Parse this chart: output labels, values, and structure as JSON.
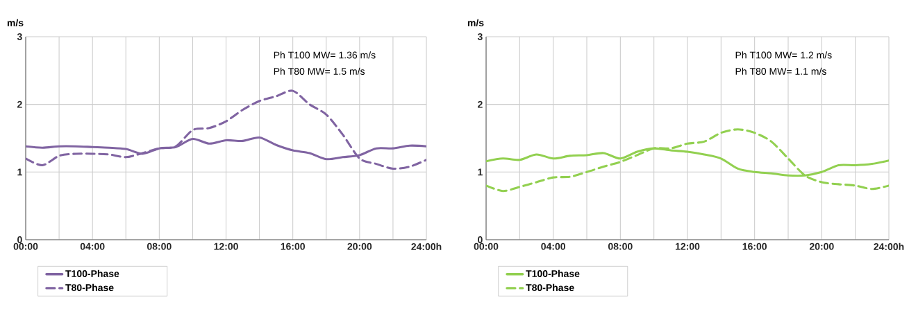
{
  "chart_data": [
    {
      "type": "line",
      "ylabel": "m/s",
      "annotations": [
        "Ph T100 MW= 1.36 m/s",
        "Ph T80 MW= 1.5 m/s"
      ],
      "x": [
        0,
        1,
        2,
        3,
        4,
        5,
        6,
        7,
        8,
        9,
        10,
        11,
        12,
        13,
        14,
        15,
        16,
        17,
        18,
        19,
        20,
        21,
        22,
        23,
        24
      ],
      "series": [
        {
          "name": "T100-Phase",
          "color": "#8064a2",
          "line_style": "solid",
          "values": [
            1.38,
            1.36,
            1.38,
            1.38,
            1.37,
            1.36,
            1.34,
            1.27,
            1.35,
            1.37,
            1.49,
            1.42,
            1.47,
            1.46,
            1.51,
            1.4,
            1.32,
            1.28,
            1.19,
            1.22,
            1.25,
            1.35,
            1.35,
            1.39,
            1.38
          ]
        },
        {
          "name": "T80-Phase",
          "color": "#8064a2",
          "line_style": "dashed",
          "values": [
            1.2,
            1.1,
            1.24,
            1.27,
            1.27,
            1.26,
            1.22,
            1.28,
            1.35,
            1.38,
            1.62,
            1.65,
            1.75,
            1.92,
            2.05,
            2.12,
            2.2,
            2.0,
            1.85,
            1.55,
            1.2,
            1.12,
            1.05,
            1.08,
            1.18
          ]
        }
      ],
      "xlim": [
        0,
        24
      ],
      "ylim": [
        0,
        3
      ],
      "xticks": [
        {
          "value": 0,
          "label": "00:00"
        },
        {
          "value": 2,
          "label": null
        },
        {
          "value": 4,
          "label": "04:00"
        },
        {
          "value": 6,
          "label": null
        },
        {
          "value": 8,
          "label": "08:00"
        },
        {
          "value": 10,
          "label": null
        },
        {
          "value": 12,
          "label": "12:00"
        },
        {
          "value": 14,
          "label": null
        },
        {
          "value": 16,
          "label": "16:00"
        },
        {
          "value": 18,
          "label": null
        },
        {
          "value": 20,
          "label": "20:00"
        },
        {
          "value": 22,
          "label": null
        },
        {
          "value": 24,
          "label": "24:00h"
        }
      ],
      "yticks": [
        0,
        1,
        2,
        3
      ],
      "grid": true,
      "legend": "bottom"
    },
    {
      "type": "line",
      "ylabel": "m/s",
      "annotations": [
        "Ph T100 MW= 1.2 m/s",
        "Ph T80 MW= 1.1 m/s"
      ],
      "x": [
        0,
        1,
        2,
        3,
        4,
        5,
        6,
        7,
        8,
        9,
        10,
        11,
        12,
        13,
        14,
        15,
        16,
        17,
        18,
        19,
        20,
        21,
        22,
        23,
        24
      ],
      "series": [
        {
          "name": "T100-Phase",
          "color": "#92d050",
          "line_style": "solid",
          "values": [
            1.16,
            1.2,
            1.18,
            1.26,
            1.2,
            1.24,
            1.25,
            1.28,
            1.2,
            1.3,
            1.35,
            1.32,
            1.3,
            1.26,
            1.2,
            1.05,
            1.0,
            0.98,
            0.95,
            0.95,
            1.0,
            1.1,
            1.1,
            1.12,
            1.17
          ]
        },
        {
          "name": "T80-Phase",
          "color": "#92d050",
          "line_style": "dashed",
          "values": [
            0.8,
            0.72,
            0.78,
            0.85,
            0.92,
            0.93,
            1.0,
            1.08,
            1.15,
            1.25,
            1.35,
            1.35,
            1.42,
            1.45,
            1.58,
            1.63,
            1.58,
            1.45,
            1.2,
            0.95,
            0.85,
            0.82,
            0.8,
            0.75,
            0.8
          ]
        }
      ],
      "xlim": [
        0,
        24
      ],
      "ylim": [
        0,
        3
      ],
      "xticks": [
        {
          "value": 0,
          "label": "00:00"
        },
        {
          "value": 2,
          "label": null
        },
        {
          "value": 4,
          "label": "04:00"
        },
        {
          "value": 6,
          "label": null
        },
        {
          "value": 8,
          "label": "08:00"
        },
        {
          "value": 10,
          "label": null
        },
        {
          "value": 12,
          "label": "12:00"
        },
        {
          "value": 14,
          "label": null
        },
        {
          "value": 16,
          "label": "16:00"
        },
        {
          "value": 18,
          "label": null
        },
        {
          "value": 20,
          "label": "20:00"
        },
        {
          "value": 22,
          "label": null
        },
        {
          "value": 24,
          "label": "24:00h"
        }
      ],
      "yticks": [
        0,
        1,
        2,
        3
      ],
      "grid": true,
      "legend": "bottom"
    }
  ]
}
